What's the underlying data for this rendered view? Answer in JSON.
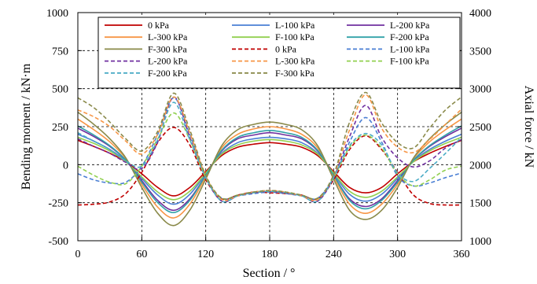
{
  "chart_data": {
    "type": "line",
    "xlabel": "Section / °",
    "ylabel_left": "Bending moment / kN·m",
    "ylabel_right": "Axial force / kN",
    "xlim": [
      0,
      360
    ],
    "ylim_left": [
      -500,
      1000
    ],
    "ylim_right": [
      1000,
      4000
    ],
    "x_ticks": [
      0,
      60,
      120,
      180,
      240,
      300,
      360
    ],
    "y_ticks_left": [
      -500,
      -250,
      0,
      250,
      500,
      750,
      1000
    ],
    "y_ticks_right": [
      1000,
      1500,
      2000,
      2500,
      3000,
      3500,
      4000
    ],
    "grid": "dashed",
    "legend_position": "top",
    "x": [
      0,
      15,
      30,
      45,
      60,
      75,
      90,
      105,
      120,
      135,
      150,
      165,
      180,
      195,
      210,
      225,
      240,
      255,
      270,
      285,
      300,
      315,
      330,
      345,
      360
    ],
    "series": [
      {
        "name": "0 kPa",
        "axis": "left",
        "color": "#c00000",
        "dash": "solid",
        "values": [
          160,
          120,
          75,
          20,
          -60,
          -150,
          -205,
          -150,
          -45,
          60,
          115,
          135,
          145,
          135,
          115,
          60,
          -45,
          -150,
          -185,
          -150,
          -60,
          20,
          75,
          120,
          160
        ]
      },
      {
        "name": "L-100 kPa",
        "axis": "left",
        "color": "#4a7fd4",
        "dash": "solid",
        "values": [
          200,
          155,
          100,
          25,
          -90,
          -200,
          -260,
          -195,
          -60,
          75,
          145,
          170,
          180,
          170,
          145,
          75,
          -60,
          -195,
          -240,
          -195,
          -90,
          25,
          100,
          155,
          200
        ]
      },
      {
        "name": "L-200 kPa",
        "axis": "left",
        "color": "#7030a0",
        "dash": "solid",
        "values": [
          240,
          185,
          120,
          30,
          -105,
          -235,
          -300,
          -225,
          -70,
          90,
          170,
          195,
          210,
          195,
          170,
          90,
          -70,
          -225,
          -275,
          -225,
          -105,
          30,
          120,
          185,
          240
        ]
      },
      {
        "name": "L-300 kPa",
        "axis": "left",
        "color": "#f79646",
        "dash": "solid",
        "values": [
          300,
          230,
          150,
          40,
          -130,
          -280,
          -350,
          -260,
          -80,
          110,
          200,
          235,
          250,
          235,
          200,
          110,
          -80,
          -260,
          -320,
          -260,
          -130,
          40,
          150,
          230,
          300
        ]
      },
      {
        "name": "F-100 kPa",
        "axis": "left",
        "color": "#92d050",
        "dash": "solid",
        "values": [
          180,
          140,
          90,
          20,
          -80,
          -180,
          -230,
          -175,
          -55,
          70,
          130,
          155,
          165,
          155,
          130,
          70,
          -55,
          -175,
          -215,
          -175,
          -80,
          20,
          90,
          140,
          180
        ]
      },
      {
        "name": "F-200 kPa",
        "axis": "left",
        "color": "#31a2a8",
        "dash": "solid",
        "values": [
          255,
          195,
          125,
          30,
          -115,
          -250,
          -315,
          -235,
          -70,
          95,
          180,
          210,
          225,
          210,
          180,
          95,
          -70,
          -235,
          -290,
          -235,
          -115,
          30,
          125,
          195,
          255
        ]
      },
      {
        "name": "F-300 kPa",
        "axis": "left",
        "color": "#8a8a4a",
        "dash": "solid",
        "values": [
          345,
          265,
          170,
          45,
          -150,
          -320,
          -400,
          -300,
          -95,
          125,
          230,
          265,
          280,
          265,
          230,
          125,
          -95,
          -300,
          -360,
          -300,
          -150,
          45,
          170,
          265,
          345
        ]
      },
      {
        "name": "0 kPa",
        "axis": "right",
        "color": "#c00000",
        "dash": "dashed",
        "values": [
          1470,
          1480,
          1510,
          1620,
          1900,
          2290,
          2490,
          2260,
          1800,
          1550,
          1600,
          1640,
          1630,
          1620,
          1600,
          1550,
          1800,
          2200,
          2380,
          2200,
          1900,
          1600,
          1490,
          1470,
          1470
        ]
      },
      {
        "name": "L-100 kPa",
        "axis": "right",
        "color": "#4a7fd4",
        "dash": "dashed",
        "values": [
          1880,
          1800,
          1760,
          1770,
          1980,
          2400,
          2880,
          2400,
          1830,
          1560,
          1590,
          1620,
          1640,
          1620,
          1590,
          1560,
          1830,
          2300,
          2620,
          2300,
          1850,
          1720,
          1760,
          1830,
          1890
        ]
      },
      {
        "name": "L-200 kPa",
        "axis": "right",
        "color": "#7030a0",
        "dash": "dashed",
        "values": [
          2340,
          2240,
          2150,
          2030,
          1950,
          2300,
          2890,
          2360,
          1830,
          1520,
          1590,
          1630,
          1650,
          1630,
          1590,
          1520,
          1830,
          2370,
          2780,
          2360,
          2090,
          1970,
          2050,
          2220,
          2330
        ]
      },
      {
        "name": "L-300 kPa",
        "axis": "right",
        "color": "#f79646",
        "dash": "dashed",
        "values": [
          2720,
          2630,
          2500,
          2310,
          2140,
          2400,
          2890,
          2420,
          1850,
          1540,
          1590,
          1640,
          1660,
          1640,
          1590,
          1540,
          1860,
          2460,
          2920,
          2480,
          2230,
          2160,
          2330,
          2530,
          2730
        ]
      },
      {
        "name": "F-100 kPa",
        "axis": "right",
        "color": "#92d050",
        "dash": "dashed",
        "values": [
          1980,
          1860,
          1770,
          1750,
          1980,
          2340,
          2680,
          2330,
          1830,
          1560,
          1600,
          1640,
          1650,
          1640,
          1600,
          1560,
          1830,
          2230,
          2390,
          2220,
          1880,
          1720,
          1800,
          1930,
          1980
        ]
      },
      {
        "name": "F-200 kPa",
        "axis": "right",
        "color": "#4bacc6",
        "dash": "dashed",
        "values": [
          2420,
          2310,
          2200,
          2050,
          1980,
          2330,
          2820,
          2330,
          1830,
          1520,
          1590,
          1630,
          1650,
          1630,
          1590,
          1520,
          1830,
          2250,
          2410,
          2260,
          1890,
          1780,
          1950,
          2150,
          2360
        ]
      },
      {
        "name": "F-300 kPa",
        "axis": "right",
        "color": "#8a8a4a",
        "dash": "dashed",
        "values": [
          2880,
          2750,
          2560,
          2340,
          2180,
          2440,
          2940,
          2460,
          1860,
          1560,
          1600,
          1640,
          1660,
          1640,
          1600,
          1560,
          1870,
          2560,
          2950,
          2550,
          2290,
          2220,
          2480,
          2720,
          2890
        ]
      }
    ]
  }
}
